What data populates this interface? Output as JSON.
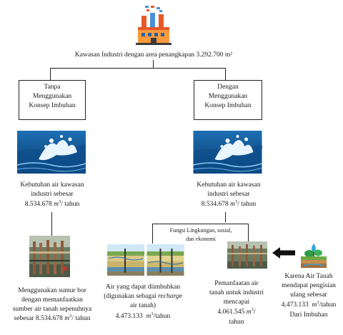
{
  "header": {
    "icon": "factory-icon",
    "title": "Kawasan Industri dengan area penangkapan 3.292.700 m²"
  },
  "left": {
    "box_lines": [
      "Tanpa",
      "Menggunakan",
      "Konsep Imbuhan"
    ],
    "image": "water-wave-icon",
    "need_line1": "Kebutuhan air kawasan",
    "need_line2": "industri sebesar",
    "need_value": "8.534.678",
    "need_unit_m": "m",
    "need_unit_exp": "3",
    "need_unit_rest": "/ tahun",
    "well_image": "borehole-pipes-icon",
    "result_line1": "Menggunakan sumur bor",
    "result_line2": "dengan memanfaatkan",
    "result_line3": "sumber air tanah sepenuhnya",
    "result_line4_prefix": "sebesar 8.534.678",
    "result_unit_m": "m",
    "result_unit_exp": "3",
    "result_unit_rest": "/ tahun"
  },
  "right": {
    "box_lines": [
      "Dengan",
      "Menggunakan",
      "Konsep Imbuhan"
    ],
    "image": "water-wave-icon",
    "need_line1": "Kebutuhan air kawasan",
    "need_line2": "industri sebesar",
    "need_value": "8.534.678",
    "need_unit_m": "m",
    "need_unit_exp": "3",
    "need_unit_rest": "/ tahun",
    "functions_line1": "Fungsi Lingkungan, sosial,",
    "functions_line2": "dan ekonomi"
  },
  "recharge": {
    "image": "aquifer-cross-section-icon",
    "line1": "Air yang dapat diimbuhkan",
    "line2_prefix": "(digunakan sebagai ",
    "line2_italic": "recharg",
    "line2_suffix": "e",
    "line3": "air tanah)",
    "value": "4.473.133",
    "unit_m": "m",
    "unit_exp": "3",
    "unit_rest": "/tahun"
  },
  "utilization": {
    "image": "borehole-pipes-icon",
    "line1": "Pemanfaatan air",
    "line2": "tanah untuk industri",
    "line3": "mencapai",
    "value": "4.061.545",
    "unit_m": "m",
    "unit_exp": "3",
    "unit_rest": "/",
    "line5": "tahun"
  },
  "refill": {
    "image": "groundwater-recharge-icon",
    "arrow": "arrow-left-icon",
    "line1": "Karena Air Tanah",
    "line2": "mendapat pengisian",
    "line3": "ulang sebesar",
    "value": "4.473.133",
    "unit_m": "m",
    "unit_exp": "3",
    "unit_rest": "/tahun",
    "line5": "Dari Imbuhan"
  }
}
